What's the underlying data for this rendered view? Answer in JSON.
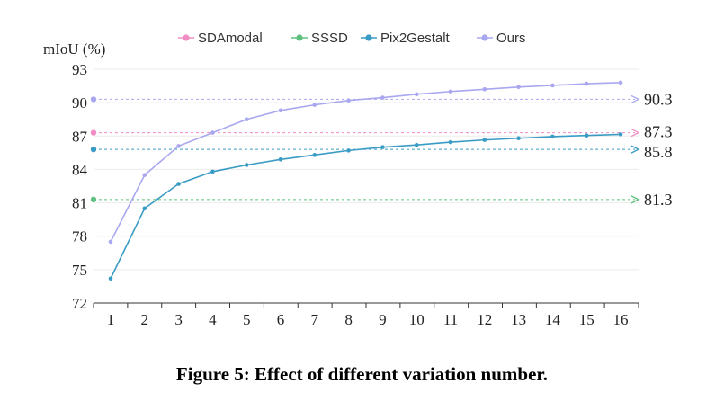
{
  "chart_data": {
    "type": "line",
    "ylabel": "mIoU (%)",
    "xlabel": "",
    "ylim": [
      72,
      93
    ],
    "y_ticks": [
      72,
      75,
      78,
      81,
      84,
      87,
      90,
      93
    ],
    "categories": [
      1,
      2,
      3,
      4,
      5,
      6,
      7,
      8,
      9,
      10,
      11,
      12,
      13,
      14,
      15,
      16
    ],
    "grid": "horizontal",
    "legend_position": "top",
    "legend": [
      "SDAmodal",
      "SSSD",
      "Pix2Gestalt",
      "Ours"
    ],
    "series": [
      {
        "name": "SDAmodal",
        "kind": "baseline",
        "value": 87.3,
        "label": "87.3",
        "color": "#f08dc4"
      },
      {
        "name": "SSSD",
        "kind": "baseline",
        "value": 81.3,
        "label": "81.3",
        "color": "#5fbf7f"
      },
      {
        "name": "Pix2Gestalt",
        "kind": "line",
        "color": "#3a9cc4",
        "values": [
          74.2,
          80.5,
          82.7,
          83.8,
          84.4,
          84.9,
          85.3,
          85.7,
          86.0,
          86.2,
          86.45,
          86.65,
          86.8,
          86.95,
          87.05,
          87.15
        ],
        "baseline_value": 85.8,
        "baseline_label": "85.8"
      },
      {
        "name": "Ours",
        "kind": "line",
        "color": "#a9a7ef",
        "values": [
          77.5,
          83.5,
          86.1,
          87.3,
          88.5,
          89.3,
          89.8,
          90.2,
          90.45,
          90.75,
          91.0,
          91.2,
          91.4,
          91.55,
          91.7,
          91.8
        ],
        "baseline_value": 90.3,
        "baseline_label": "90.3"
      }
    ]
  },
  "caption": "Figure 5: Effect of different variation number."
}
